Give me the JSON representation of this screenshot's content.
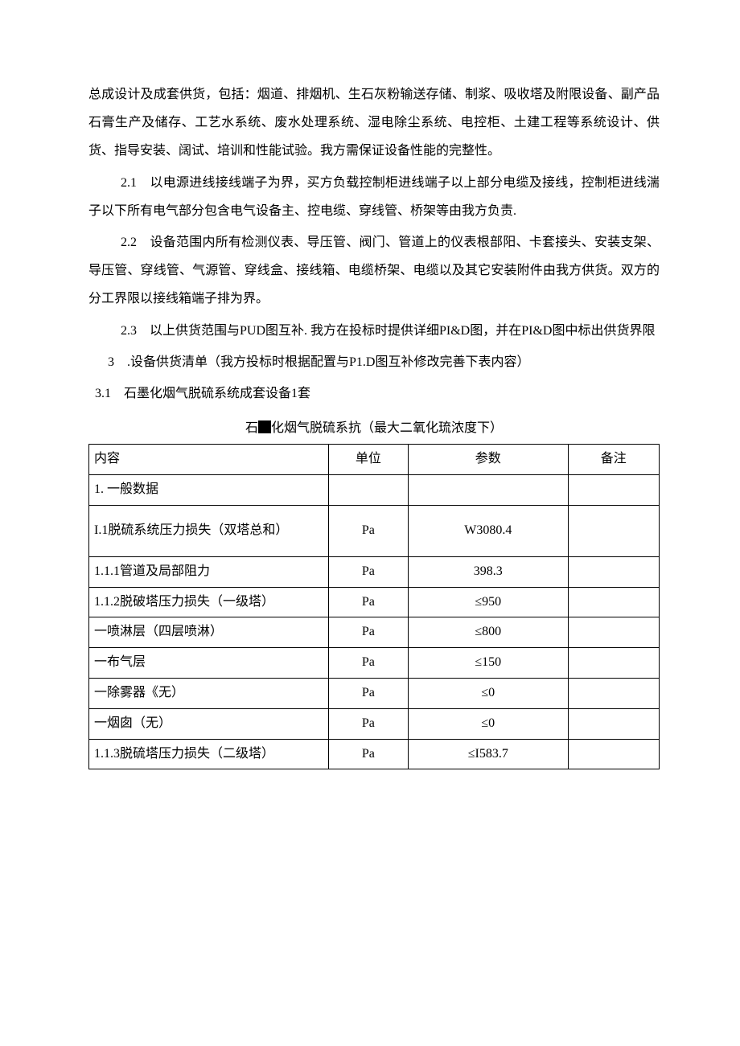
{
  "p1": "总成设计及成套供货，包括：烟道、排烟机、生石灰粉输送存储、制浆、吸收塔及附限设备、副产品石膏生产及储存、工艺水系统、废水处理系统、湿电除尘系统、电控柜、土建工程等系统设计、供货、指导安装、阔试、培训和性能试验。我方需保证设备性能的完整性。",
  "p21": "2.1　以电源进线接线端子为界，买方负载控制柜进线端子以上部分电缆及接线，控制柜进线湍子以下所有电气部分包含电气设备主、控电缆、穿线管、桥架等由我方负责.",
  "p22": "2.2　设备范围内所有检测仪表、导压管、阀门、管道上的仪表根部阳、卡套接头、安装支架、导压管、穿线管、气源管、穿线盒、接线箱、电缆桥架、电缆以及其它安装附件由我方供货。双方的分工界限以接线箱端子排为界。",
  "p23": "2.3　以上供货范围与PUD图互补. 我方在投标时提供详细PI&D图，并在PI&D图中标出供货界限",
  "p3": "3　.设备供货清单（我方投标时根据配置与P1.D图互补修改完善下表内容）",
  "p31": "3.1　石墨化烟气脱硫系统成套设备1套",
  "caption_pre": "石",
  "caption_post": "化烟气脱硫系抗（最大二氧化琉浓度下）",
  "table": {
    "headers": [
      "内容",
      "单位",
      "参数",
      "备注"
    ],
    "rows": [
      {
        "c": "1. 一般数据",
        "u": "",
        "p": "",
        "n": ""
      },
      {
        "c": "I.1脱硫系统压力损失（双塔总和）",
        "u": "Pa",
        "p": "W3080.4",
        "n": "",
        "tall": true
      },
      {
        "c": "1.1.1管道及局部阻力",
        "u": "Pa",
        "p": "398.3",
        "n": ""
      },
      {
        "c": "1.1.2脱破塔压力损失（一级塔）",
        "u": "Pa",
        "p": "≤950",
        "n": ""
      },
      {
        "c": "一喷淋层（四层喷淋）",
        "u": "Pa",
        "p": "≤800",
        "n": ""
      },
      {
        "c": "一布气层",
        "u": "Pa",
        "p": "≤150",
        "n": ""
      },
      {
        "c": "一除雾器《无）",
        "u": "Pa",
        "p": "≤0",
        "n": ""
      },
      {
        "c": "一烟囱（无）",
        "u": "Pa",
        "p": "≤0",
        "n": ""
      },
      {
        "c": "1.1.3脱硫塔压力损失（二级塔）",
        "u": "Pa",
        "p": "≤I583.7",
        "n": ""
      }
    ]
  }
}
